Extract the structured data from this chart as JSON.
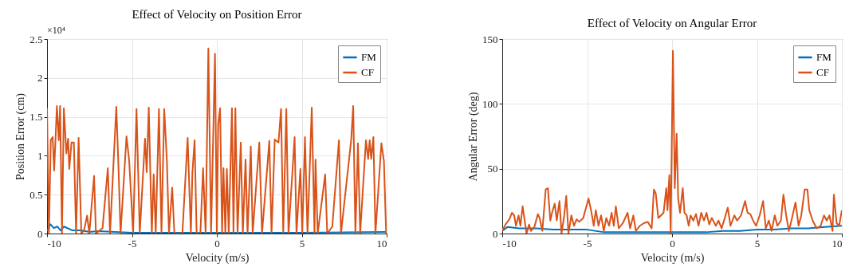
{
  "chart_data": [
    {
      "type": "line",
      "title": "Effect of Velocity on Position Error",
      "xlabel": "Velocity (m/s)",
      "ylabel": "Position Error (cm)",
      "xlim": [
        -10,
        10
      ],
      "xticks": [
        -10,
        -5,
        0,
        5,
        10
      ],
      "ylim": [
        0,
        2.5
      ],
      "yticks": [
        0,
        0.5,
        1,
        1.5,
        2,
        2.5
      ],
      "grid": true,
      "legend": "top right",
      "annotations": [
        "×10⁴"
      ],
      "series": [
        {
          "name": "FM",
          "color": "#0072bd",
          "x": [
            -10,
            -9.8,
            -9.6,
            -9.4,
            -9.2,
            -9,
            -8.5,
            -8,
            -7.5,
            -7,
            -6,
            -5,
            -3,
            0,
            5,
            10
          ],
          "values": [
            0.03,
            0.12,
            0.07,
            0.09,
            0.04,
            0.09,
            0.04,
            0.04,
            0.02,
            0.03,
            0.02,
            0.01,
            0.01,
            0.01,
            0.01,
            0.02
          ]
        },
        {
          "name": "CF",
          "color": "#d95319",
          "x": [
            -10,
            -9.89,
            -9.78,
            -9.67,
            -9.58,
            -9.42,
            -9.31,
            -9.23,
            -9.12,
            -9.01,
            -8.86,
            -8.76,
            -8.69,
            -8.56,
            -8.42,
            -8.29,
            -8.14,
            -7.98,
            -7.82,
            -7.64,
            -7.51,
            -7.23,
            -7.12,
            -6.73,
            -6.42,
            -6.29,
            -5.92,
            -5.79,
            -5.67,
            -5.32,
            -5.16,
            -4.93,
            -4.73,
            -4.54,
            -4.23,
            -4.13,
            -4.01,
            -3.83,
            -3.72,
            -3.6,
            -3.41,
            -3.26,
            -3.1,
            -2.94,
            -2.82,
            -2.63,
            -2.5,
            -2.03,
            -1.72,
            -1.53,
            -1.44,
            -1.31,
            -1.19,
            -0.97,
            -0.81,
            -0.66,
            -0.5,
            -0.34,
            -0.11,
            0,
            0.08,
            0.19,
            0.31,
            0.39,
            0.5,
            0.59,
            0.7,
            0.89,
            0.98,
            1.09,
            1.22,
            1.41,
            1.53,
            1.69,
            1.81,
            2,
            2.11,
            2.5,
            2.66,
            3.09,
            3.22,
            3.41,
            3.63,
            3.78,
            3.91,
            4.09,
            4.22,
            4.58,
            4.69,
            4.92,
            5.03,
            5.19,
            5.34,
            5.59,
            5.75,
            5.81,
            5.94,
            6.38,
            6.5,
            6.8,
            7.19,
            7.31,
            7.91,
            8.03,
            8.16,
            8.31,
            8.44,
            8.78,
            8.91,
            9,
            9.09,
            9.22,
            9.34,
            9.69,
            9.84,
            9.97
          ],
          "values": [
            1.61,
            0,
            1.2,
            1.24,
            0.81,
            1.64,
            1.2,
            1.64,
            0,
            1.61,
            1.03,
            1.22,
            0.83,
            1.17,
            1.17,
            0,
            1.23,
            0,
            0.04,
            0.23,
            0,
            0.74,
            0,
            0.07,
            0.84,
            0,
            1.63,
            0.84,
            0,
            1.25,
            0.93,
            0,
            1.6,
            0,
            1.22,
            0.79,
            1.62,
            0,
            0.76,
            0,
            1.6,
            0,
            1.6,
            0.93,
            0,
            0.59,
            0,
            0,
            1.23,
            0,
            0.78,
            1.2,
            0,
            0,
            0.84,
            0,
            2.38,
            0,
            2.31,
            0,
            1.4,
            1.61,
            0,
            0.84,
            0,
            0.83,
            0,
            1.61,
            0,
            1.61,
            0,
            1.17,
            0,
            0.95,
            0,
            1.12,
            0,
            1.17,
            0,
            1.19,
            0,
            1.21,
            1.17,
            1.6,
            0,
            1.6,
            0,
            1.24,
            0,
            0.83,
            0,
            1.24,
            0,
            1.62,
            0,
            0.95,
            0,
            0.76,
            0,
            0.09,
            1.2,
            0,
            1.2,
            1.64,
            0,
            1.16,
            0,
            1.2,
            0.96,
            1.2,
            0.96,
            1.24,
            0,
            1.16,
            0.93,
            0
          ]
        }
      ]
    },
    {
      "type": "line",
      "title": "Effect of Velocity on Angular Error",
      "xlabel": "Velocity (m/s)",
      "ylabel": "Angular Error (deg)",
      "xlim": [
        -10,
        10
      ],
      "xticks": [
        -10,
        -5,
        0,
        5,
        10
      ],
      "ylim": [
        0,
        150
      ],
      "yticks": [
        0,
        50,
        100,
        150
      ],
      "grid": true,
      "legend": "top right",
      "series": [
        {
          "name": "FM",
          "color": "#0072bd",
          "x": [
            -10,
            -9.7,
            -9,
            -8,
            -7,
            -6,
            -5,
            -4,
            -3,
            -2,
            -1,
            0,
            1,
            2,
            3,
            4,
            5,
            6,
            7,
            8,
            9,
            10
          ],
          "values": [
            2,
            5,
            4,
            4,
            3,
            3,
            3,
            1,
            1,
            1,
            1,
            1,
            1,
            1,
            2,
            2,
            3,
            3,
            4,
            4,
            5,
            6
          ]
        },
        {
          "name": "CF",
          "color": "#d95319",
          "x": [
            -10,
            -9.81,
            -9.58,
            -9.43,
            -9.3,
            -9.19,
            -9.04,
            -8.93,
            -8.8,
            -8.68,
            -8.57,
            -8.42,
            -8.31,
            -8.11,
            -7.9,
            -7.8,
            -7.64,
            -7.44,
            -7.31,
            -7.17,
            -7.07,
            -6.91,
            -6.79,
            -6.63,
            -6.51,
            -6.35,
            -6.23,
            -6.1,
            -5.93,
            -5.78,
            -5.62,
            -5.47,
            -5.23,
            -4.92,
            -4.77,
            -4.61,
            -4.49,
            -4.33,
            -4.18,
            -4.02,
            -3.87,
            -3.71,
            -3.56,
            -3.43,
            -3.31,
            -3.14,
            -2.9,
            -2.62,
            -2.47,
            -2.28,
            -2.13,
            -1.89,
            -1.66,
            -1.43,
            -1.2,
            -1.07,
            -0.96,
            -0.81,
            -0.65,
            -0.5,
            -0.34,
            -0.27,
            -0.16,
            -0.08,
            0.05,
            0.16,
            0.27,
            0.36,
            0.47,
            0.63,
            0.73,
            0.86,
            0.98,
            1.09,
            1.25,
            1.41,
            1.56,
            1.72,
            1.88,
            2.03,
            2.19,
            2.34,
            2.58,
            2.73,
            2.92,
            3.13,
            3.28,
            3.44,
            3.67,
            3.83,
            4.06,
            4.3,
            4.45,
            4.61,
            4.77,
            4.95,
            5.16,
            5.36,
            5.52,
            5.7,
            5.86,
            6.05,
            6.2,
            6.41,
            6.56,
            6.72,
            6.88,
            7.03,
            7.27,
            7.45,
            7.61,
            7.81,
            7.97,
            8.08,
            8.28,
            8.52,
            8.75,
            8.95,
            9.11,
            9.27,
            9.45,
            9.53,
            9.69,
            9.84,
            10
          ],
          "values": [
            2,
            7,
            11,
            16,
            14,
            6,
            14,
            6,
            21,
            10,
            0,
            7,
            2,
            5,
            15,
            12,
            2,
            34,
            35,
            10,
            16,
            23,
            10,
            25,
            0,
            14,
            29,
            0,
            14,
            6,
            11,
            9,
            12,
            27,
            18,
            6,
            18,
            6,
            14,
            2,
            12,
            6,
            16,
            6,
            21,
            4,
            8,
            16,
            4,
            14,
            2,
            6,
            8,
            9,
            4,
            34,
            31,
            12,
            14,
            16,
            35,
            18,
            45,
            0,
            141,
            35,
            77,
            27,
            16,
            35,
            16,
            14,
            6,
            14,
            10,
            15,
            6,
            16,
            10,
            16,
            7,
            12,
            6,
            10,
            4,
            13,
            20,
            6,
            14,
            10,
            14,
            25,
            16,
            15,
            10,
            6,
            14,
            25,
            4,
            10,
            2,
            14,
            6,
            10,
            30,
            14,
            2,
            10,
            24,
            6,
            14,
            34,
            34,
            18,
            10,
            4,
            6,
            14,
            10,
            14,
            2,
            30,
            8,
            6,
            18
          ]
        }
      ]
    }
  ]
}
